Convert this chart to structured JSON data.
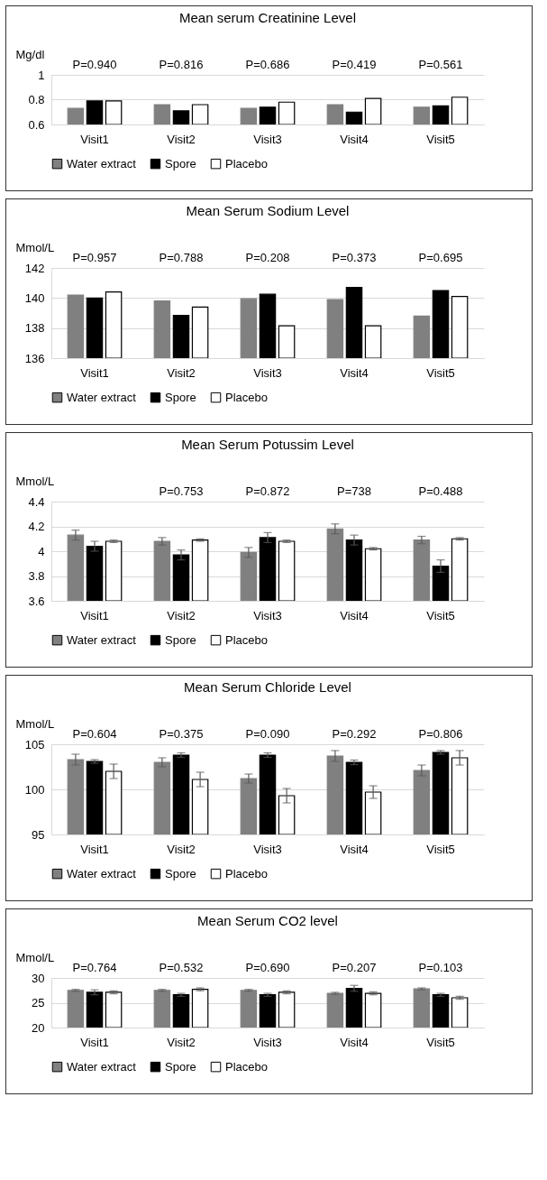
{
  "chart_data": [
    {
      "type": "bar",
      "title": "Mean serum Creatinine Level",
      "ylabel": "Mg/dl",
      "categories": [
        "Visit1",
        "Visit2",
        "Visit3",
        "Visit4",
        "Visit5"
      ],
      "ylim": [
        0.6,
        1
      ],
      "yticks": [
        0.6,
        0.8,
        1
      ],
      "grid": "y",
      "legend": "bottom",
      "series": [
        {
          "name": "Water extract",
          "color": "#808080",
          "values": [
            0.73,
            0.76,
            0.73,
            0.76,
            0.74
          ]
        },
        {
          "name": "Spore",
          "color": "#000000",
          "values": [
            0.79,
            0.71,
            0.74,
            0.7,
            0.75
          ]
        },
        {
          "name": "Placebo",
          "color": "#ffffff",
          "values": [
            0.79,
            0.76,
            0.78,
            0.81,
            0.82
          ]
        }
      ],
      "annotations": [
        "P=0.940",
        "P=0.816",
        "P=0.686",
        "P=0.419",
        "P=0.561"
      ]
    },
    {
      "type": "bar",
      "title": "Mean Serum Sodium Level",
      "ylabel": "Mmol/L",
      "categories": [
        "Visit1",
        "Visit2",
        "Visit3",
        "Visit4",
        "Visit5"
      ],
      "ylim": [
        136,
        142
      ],
      "yticks": [
        136,
        138,
        140,
        142
      ],
      "grid": "y",
      "legend": "bottom",
      "series": [
        {
          "name": "Water extract",
          "color": "#808080",
          "values": [
            140.2,
            139.8,
            139.95,
            139.9,
            138.8
          ]
        },
        {
          "name": "Spore",
          "color": "#000000",
          "values": [
            140.0,
            138.85,
            140.25,
            140.7,
            140.5
          ]
        },
        {
          "name": "Placebo",
          "color": "#ffffff",
          "values": [
            140.4,
            139.4,
            138.15,
            138.15,
            140.1
          ]
        }
      ],
      "annotations": [
        "P=0.957",
        "P=0.788",
        "P=0.208",
        "P=0.373",
        "P=0.695"
      ]
    },
    {
      "type": "bar",
      "title": "Mean Serum Potussim Level",
      "ylabel": "Mmol/L",
      "categories": [
        "Visit1",
        "Visit2",
        "Visit3",
        "Visit4",
        "Visit5"
      ],
      "ylim": [
        3.6,
        4.4
      ],
      "yticks": [
        3.6,
        3.8,
        4,
        4.2,
        4.4
      ],
      "grid": "y",
      "legend": "bottom",
      "series": [
        {
          "name": "Water extract",
          "color": "#808080",
          "values": [
            4.13,
            4.08,
            3.99,
            4.18,
            4.09
          ],
          "errors": [
            0.04,
            0.03,
            0.04,
            0.04,
            0.03
          ]
        },
        {
          "name": "Spore",
          "color": "#000000",
          "values": [
            4.04,
            3.97,
            4.11,
            4.09,
            3.88
          ],
          "errors": [
            0.04,
            0.04,
            0.04,
            0.04,
            0.05
          ]
        },
        {
          "name": "Placebo",
          "color": "#ffffff",
          "values": [
            4.08,
            4.09,
            4.08,
            4.02,
            4.1
          ],
          "errors": [
            0.01,
            0.01,
            0.01,
            0.01,
            0.01
          ]
        }
      ],
      "annotations": [
        "P=0.753",
        "P=0.872",
        "P=738",
        "P=0.488"
      ]
    },
    {
      "type": "bar",
      "title": "Mean Serum Chloride Level",
      "ylabel": "Mmol/L",
      "categories": [
        "Visit1",
        "Visit2",
        "Visit3",
        "Visit4",
        "Visit5"
      ],
      "ylim": [
        95,
        105
      ],
      "yticks": [
        95,
        100,
        105
      ],
      "grid": "y",
      "legend": "bottom",
      "series": [
        {
          "name": "Water extract",
          "color": "#808080",
          "values": [
            103.3,
            103.0,
            101.2,
            103.7,
            102.1
          ],
          "errors": [
            0.6,
            0.5,
            0.5,
            0.6,
            0.6
          ]
        },
        {
          "name": "Spore",
          "color": "#000000",
          "values": [
            103.1,
            103.8,
            103.8,
            103.0,
            104.1
          ],
          "errors": [
            0.2,
            0.25,
            0.25,
            0.25,
            0.2
          ]
        },
        {
          "name": "Placebo",
          "color": "#ffffff",
          "values": [
            102.0,
            101.1,
            99.3,
            99.7,
            103.5
          ],
          "errors": [
            0.8,
            0.8,
            0.8,
            0.7,
            0.8
          ]
        }
      ],
      "annotations": [
        "P=0.604",
        "P=0.375",
        "P=0.090",
        "P=0.292",
        "P=0.806"
      ]
    },
    {
      "type": "bar",
      "title": "Mean Serum CO2 level",
      "ylabel": "Mmol/L",
      "categories": [
        "Visit1",
        "Visit2",
        "Visit3",
        "Visit4",
        "Visit5"
      ],
      "ylim": [
        20,
        30
      ],
      "yticks": [
        20,
        25,
        30
      ],
      "grid": "y",
      "legend": "bottom",
      "series": [
        {
          "name": "Water extract",
          "color": "#808080",
          "values": [
            27.5,
            27.5,
            27.5,
            26.9,
            27.8
          ],
          "errors": [
            0.2,
            0.2,
            0.2,
            0.2,
            0.2
          ]
        },
        {
          "name": "Spore",
          "color": "#000000",
          "values": [
            27.1,
            26.6,
            26.6,
            27.9,
            26.6
          ],
          "errors": [
            0.5,
            0.3,
            0.3,
            0.6,
            0.3
          ]
        },
        {
          "name": "Placebo",
          "color": "#ffffff",
          "values": [
            27.1,
            27.7,
            27.1,
            26.9,
            26.0
          ],
          "errors": [
            0.3,
            0.3,
            0.3,
            0.3,
            0.3
          ]
        }
      ],
      "annotations": [
        "P=0.764",
        "P=0.532",
        "P=0.690",
        "P=0.207",
        "P=0.103"
      ]
    }
  ]
}
